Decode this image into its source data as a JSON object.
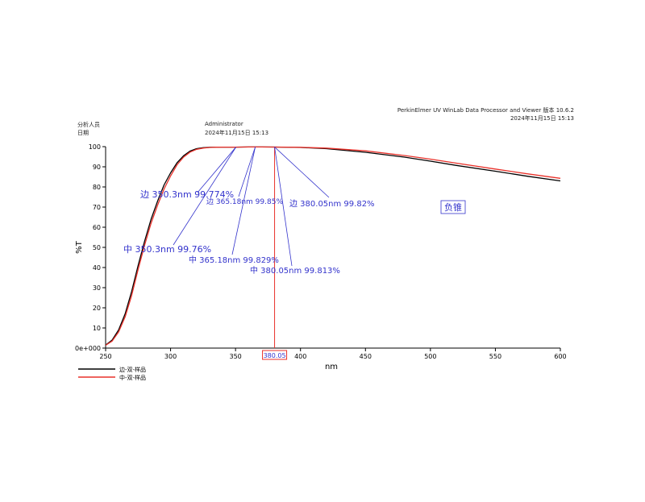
{
  "header": {
    "analyst_label": "分析人员",
    "date_label": "日期",
    "analyst_value": "Administrator",
    "date_value": "2024年11月15日 15:13",
    "software": "PerkinElmer UV WinLab Data Processor and Viewer 版本 10.6.2",
    "software_date": "2024年11月15日 15:13"
  },
  "chart_data": {
    "type": "line",
    "xlabel": "nm",
    "ylabel": "%T",
    "xlim": [
      250,
      600
    ],
    "ylim": [
      0,
      100
    ],
    "x_ticks": [
      250,
      300,
      350,
      400,
      450,
      500,
      550,
      600
    ],
    "y_ticks": [
      0,
      10,
      20,
      30,
      40,
      50,
      60,
      70,
      80,
      90,
      100
    ],
    "y_tick_labels": [
      "0e+000",
      "10",
      "20",
      "30",
      "40",
      "50",
      "60",
      "70",
      "80",
      "90",
      "100"
    ],
    "grid": false,
    "legend": "bottom-left",
    "x": [
      250,
      255,
      260,
      265,
      270,
      275,
      280,
      285,
      290,
      295,
      300,
      305,
      310,
      315,
      320,
      325,
      330,
      335,
      340,
      345,
      350,
      360,
      370,
      380,
      400,
      420,
      450,
      480,
      500,
      520,
      550,
      575,
      600
    ],
    "series": [
      {
        "name": "边-双-样品",
        "color": "#000000",
        "values": [
          1.5,
          4,
          9,
          17,
          28,
          41,
          53,
          64,
          73,
          81,
          87,
          92,
          95.5,
          97.8,
          99.0,
          99.5,
          99.7,
          99.75,
          99.77,
          99.77,
          99.774,
          99.85,
          99.84,
          99.82,
          99.6,
          99.0,
          97.2,
          94.8,
          92.8,
          90.7,
          87.8,
          85.3,
          83.0
        ]
      },
      {
        "name": "中-双-样品",
        "color": "#e8312a",
        "values": [
          1.4,
          3.5,
          8,
          15.5,
          26,
          39,
          51,
          62,
          71,
          79,
          85.5,
          91,
          94.8,
          97.3,
          98.7,
          99.3,
          99.6,
          99.72,
          99.75,
          99.76,
          99.76,
          99.829,
          99.83,
          99.813,
          99.7,
          99.3,
          97.9,
          95.6,
          93.8,
          91.8,
          88.9,
          86.5,
          84.3
        ]
      }
    ],
    "cursor": {
      "x": 380.05,
      "label": "380.05",
      "color": "#e8312a"
    },
    "annotations": [
      {
        "id": "edge-350",
        "text": "边 350.3nm  99.774%",
        "x": 350.3,
        "y": 99.774
      },
      {
        "id": "edge-365",
        "text": "边 365.18nm  99.85%",
        "x": 365.18,
        "y": 99.85
      },
      {
        "id": "edge-380",
        "text": "边 380.05nm  99.82%",
        "x": 380.05,
        "y": 99.82
      },
      {
        "id": "mid-350",
        "text": "中 350.3nm  99.76%",
        "x": 350.3,
        "y": 99.76
      },
      {
        "id": "mid-365",
        "text": "中 365.18nm  99.829%",
        "x": 365.18,
        "y": 99.829
      },
      {
        "id": "mid-380",
        "text": "中 380.05nm  99.813%",
        "x": 380.05,
        "y": 99.813
      }
    ],
    "note_box": "负锥",
    "annotation_color": "#3333cc"
  }
}
